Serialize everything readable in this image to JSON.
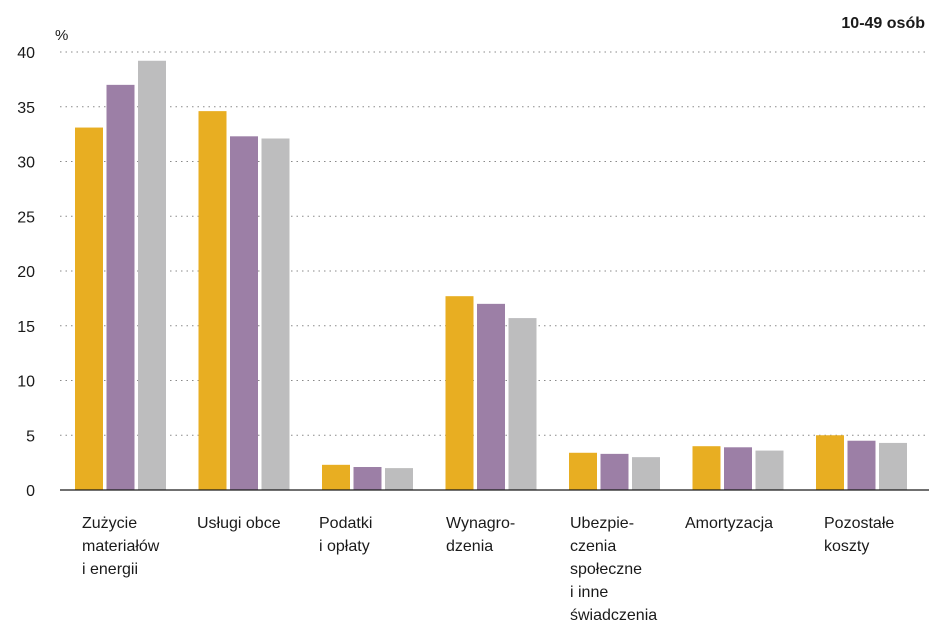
{
  "chart_data": {
    "type": "bar",
    "title": "10-49 osób",
    "unit_label": "%",
    "ylim": [
      0,
      40
    ],
    "yticks": [
      0,
      5,
      10,
      15,
      20,
      25,
      30,
      35,
      40
    ],
    "grid": true,
    "categories": [
      [
        "Zużycie",
        "materiałów",
        "i energii"
      ],
      [
        "Usługi obce"
      ],
      [
        "Podatki",
        "i opłaty"
      ],
      [
        "Wynagro-",
        "dzenia"
      ],
      [
        "Ubezpie-",
        "czenia",
        "społeczne",
        "i inne",
        "świadczenia"
      ],
      [
        "Amortyzacja"
      ],
      [
        "Pozostałe",
        "koszty"
      ]
    ],
    "series": [
      {
        "color": "#E8AE22",
        "values": [
          33.1,
          34.6,
          2.3,
          17.7,
          3.4,
          4.0,
          5.0
        ]
      },
      {
        "color": "#9C7FA6",
        "values": [
          37.0,
          32.3,
          2.1,
          17.0,
          3.3,
          3.9,
          4.5
        ]
      },
      {
        "color": "#BDBDBE",
        "values": [
          39.2,
          32.1,
          2.0,
          15.7,
          3.0,
          3.6,
          4.3
        ]
      }
    ]
  }
}
